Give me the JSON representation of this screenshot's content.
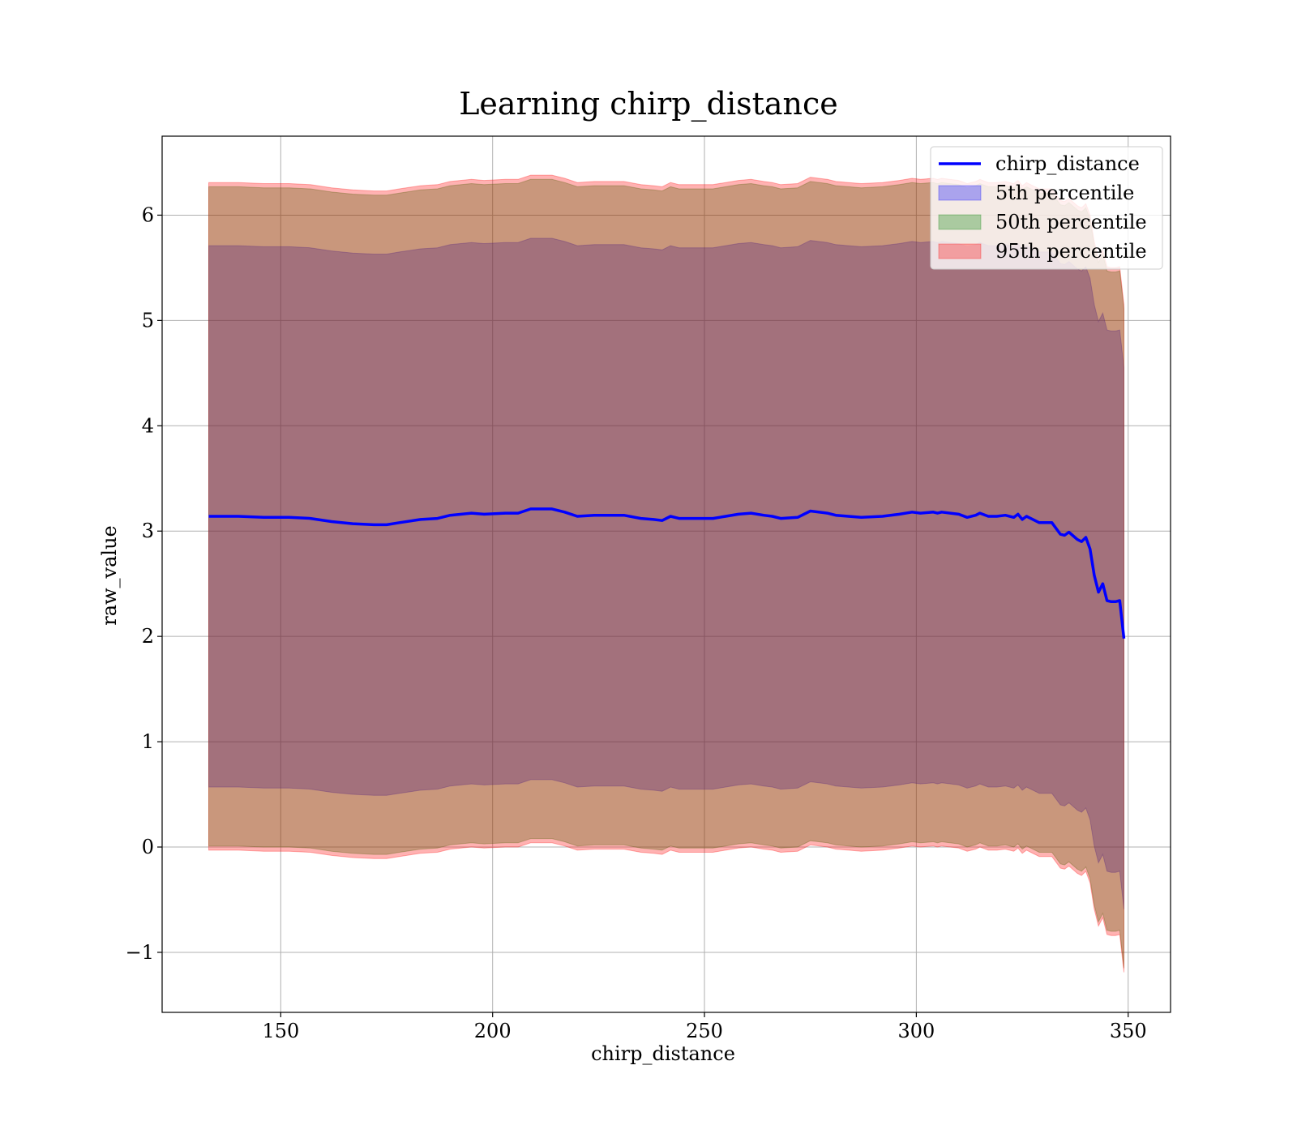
{
  "chart_data": {
    "type": "area",
    "title": "Learning chirp_distance",
    "xlabel": "chirp_distance",
    "ylabel": "raw_value",
    "xlim": [
      122,
      360
    ],
    "ylim": [
      -1.57,
      6.75
    ],
    "xticks": [
      150,
      200,
      250,
      300,
      350
    ],
    "yticks": [
      -1,
      0,
      1,
      2,
      3,
      4,
      5,
      6
    ],
    "grid": true,
    "legend_position": "top-right",
    "x": [
      133,
      140,
      146,
      152,
      157,
      162,
      167,
      172,
      175,
      178,
      183,
      187,
      190,
      195,
      198,
      203,
      206,
      209,
      214,
      217,
      220,
      224,
      231,
      235,
      238,
      240,
      242,
      244,
      247,
      250,
      252,
      255,
      258,
      261,
      264,
      266,
      268,
      272,
      275,
      279,
      281,
      284,
      287,
      292,
      296,
      299,
      301,
      304,
      305,
      306,
      310,
      312,
      314,
      315,
      317,
      319,
      321,
      323,
      324,
      325,
      326,
      327,
      329,
      330,
      332,
      334,
      335,
      336,
      338,
      339,
      340,
      341,
      342,
      343,
      344,
      345,
      346,
      347,
      348,
      349
    ],
    "series": [
      {
        "name": "chirp_distance",
        "kind": "line",
        "color": "#0000ff",
        "values": [
          3.14,
          3.14,
          3.13,
          3.13,
          3.12,
          3.09,
          3.07,
          3.06,
          3.06,
          3.08,
          3.11,
          3.12,
          3.15,
          3.17,
          3.16,
          3.17,
          3.17,
          3.21,
          3.21,
          3.18,
          3.14,
          3.15,
          3.15,
          3.12,
          3.11,
          3.1,
          3.14,
          3.12,
          3.12,
          3.12,
          3.12,
          3.14,
          3.16,
          3.17,
          3.15,
          3.14,
          3.12,
          3.13,
          3.19,
          3.17,
          3.15,
          3.14,
          3.13,
          3.14,
          3.16,
          3.18,
          3.17,
          3.18,
          3.17,
          3.18,
          3.16,
          3.13,
          3.15,
          3.17,
          3.14,
          3.14,
          3.15,
          3.13,
          3.16,
          3.11,
          3.14,
          3.12,
          3.08,
          3.08,
          3.08,
          2.97,
          2.96,
          2.99,
          2.92,
          2.9,
          2.94,
          2.83,
          2.58,
          2.42,
          2.5,
          2.34,
          2.33,
          2.33,
          2.34,
          1.98
        ]
      },
      {
        "name": "5th percentile",
        "kind": "band",
        "color": "#0000ff",
        "fill_opacity": 0.3,
        "lower": [
          0.57,
          0.57,
          0.56,
          0.56,
          0.55,
          0.52,
          0.5,
          0.49,
          0.49,
          0.51,
          0.54,
          0.55,
          0.58,
          0.6,
          0.59,
          0.6,
          0.6,
          0.64,
          0.64,
          0.61,
          0.57,
          0.58,
          0.58,
          0.55,
          0.54,
          0.53,
          0.57,
          0.55,
          0.55,
          0.55,
          0.55,
          0.57,
          0.59,
          0.6,
          0.58,
          0.57,
          0.55,
          0.56,
          0.62,
          0.6,
          0.58,
          0.57,
          0.56,
          0.57,
          0.59,
          0.61,
          0.6,
          0.61,
          0.6,
          0.61,
          0.59,
          0.56,
          0.58,
          0.6,
          0.57,
          0.57,
          0.58,
          0.56,
          0.59,
          0.54,
          0.57,
          0.55,
          0.51,
          0.51,
          0.51,
          0.4,
          0.39,
          0.42,
          0.35,
          0.33,
          0.37,
          0.26,
          0.01,
          -0.15,
          -0.07,
          -0.23,
          -0.24,
          -0.24,
          -0.23,
          -0.59
        ],
        "upper": [
          5.71,
          5.71,
          5.7,
          5.7,
          5.69,
          5.66,
          5.64,
          5.63,
          5.63,
          5.65,
          5.68,
          5.69,
          5.72,
          5.74,
          5.73,
          5.74,
          5.74,
          5.78,
          5.78,
          5.75,
          5.71,
          5.72,
          5.72,
          5.69,
          5.68,
          5.67,
          5.71,
          5.69,
          5.69,
          5.69,
          5.69,
          5.71,
          5.73,
          5.74,
          5.72,
          5.71,
          5.69,
          5.7,
          5.76,
          5.74,
          5.72,
          5.71,
          5.7,
          5.71,
          5.73,
          5.75,
          5.74,
          5.75,
          5.74,
          5.75,
          5.73,
          5.7,
          5.72,
          5.74,
          5.71,
          5.71,
          5.72,
          5.7,
          5.73,
          5.68,
          5.71,
          5.69,
          5.65,
          5.65,
          5.65,
          5.54,
          5.53,
          5.56,
          5.49,
          5.47,
          5.51,
          5.4,
          5.15,
          4.99,
          5.07,
          4.91,
          4.9,
          4.9,
          4.91,
          4.55
        ]
      },
      {
        "name": "50th percentile",
        "kind": "band",
        "color": "#008000",
        "fill_opacity": 0.3,
        "lower": [
          0.01,
          0.01,
          0.0,
          0.0,
          -0.01,
          -0.04,
          -0.06,
          -0.07,
          -0.07,
          -0.05,
          -0.02,
          -0.01,
          0.02,
          0.04,
          0.03,
          0.04,
          0.04,
          0.08,
          0.08,
          0.05,
          0.01,
          0.02,
          0.02,
          -0.01,
          -0.02,
          -0.03,
          0.01,
          -0.01,
          -0.01,
          -0.01,
          -0.01,
          0.01,
          0.03,
          0.04,
          0.02,
          0.01,
          -0.01,
          0.0,
          0.06,
          0.04,
          0.02,
          0.01,
          0.0,
          0.01,
          0.03,
          0.05,
          0.04,
          0.05,
          0.04,
          0.05,
          0.03,
          0.0,
          0.02,
          0.04,
          0.01,
          0.01,
          0.02,
          0.0,
          0.03,
          -0.02,
          0.01,
          -0.01,
          -0.05,
          -0.05,
          -0.05,
          -0.16,
          -0.17,
          -0.14,
          -0.21,
          -0.23,
          -0.19,
          -0.3,
          -0.55,
          -0.71,
          -0.63,
          -0.79,
          -0.8,
          -0.8,
          -0.79,
          -1.15
        ],
        "upper": [
          6.27,
          6.27,
          6.26,
          6.26,
          6.25,
          6.22,
          6.2,
          6.19,
          6.19,
          6.21,
          6.24,
          6.25,
          6.28,
          6.3,
          6.29,
          6.3,
          6.3,
          6.34,
          6.34,
          6.31,
          6.27,
          6.28,
          6.28,
          6.25,
          6.24,
          6.23,
          6.27,
          6.25,
          6.25,
          6.25,
          6.25,
          6.27,
          6.29,
          6.3,
          6.28,
          6.27,
          6.25,
          6.26,
          6.32,
          6.3,
          6.28,
          6.27,
          6.26,
          6.27,
          6.29,
          6.31,
          6.3,
          6.31,
          6.3,
          6.31,
          6.29,
          6.26,
          6.28,
          6.3,
          6.27,
          6.27,
          6.28,
          6.26,
          6.29,
          6.24,
          6.27,
          6.25,
          6.21,
          6.21,
          6.21,
          6.1,
          6.09,
          6.12,
          6.05,
          6.03,
          6.07,
          5.96,
          5.71,
          5.55,
          5.63,
          5.47,
          5.46,
          5.46,
          5.47,
          5.11
        ]
      },
      {
        "name": "95th percentile",
        "kind": "band",
        "color": "#ff0000",
        "fill_opacity": 0.3,
        "lower": [
          -0.03,
          -0.03,
          -0.04,
          -0.04,
          -0.05,
          -0.08,
          -0.1,
          -0.11,
          -0.11,
          -0.09,
          -0.06,
          -0.05,
          -0.02,
          0.0,
          -0.01,
          0.0,
          0.0,
          0.04,
          0.04,
          0.01,
          -0.03,
          -0.02,
          -0.02,
          -0.05,
          -0.06,
          -0.07,
          -0.03,
          -0.05,
          -0.05,
          -0.05,
          -0.05,
          -0.03,
          -0.01,
          0.0,
          -0.02,
          -0.03,
          -0.05,
          -0.04,
          0.02,
          0.0,
          -0.02,
          -0.03,
          -0.04,
          -0.03,
          -0.01,
          0.01,
          0.0,
          0.01,
          0.0,
          0.01,
          -0.01,
          -0.04,
          -0.02,
          0.0,
          -0.03,
          -0.03,
          -0.02,
          -0.04,
          -0.01,
          -0.06,
          -0.03,
          -0.05,
          -0.09,
          -0.09,
          -0.09,
          -0.2,
          -0.21,
          -0.18,
          -0.25,
          -0.27,
          -0.23,
          -0.34,
          -0.59,
          -0.75,
          -0.67,
          -0.83,
          -0.84,
          -0.84,
          -0.83,
          -1.19
        ],
        "upper": [
          6.31,
          6.31,
          6.3,
          6.3,
          6.29,
          6.26,
          6.24,
          6.23,
          6.23,
          6.25,
          6.28,
          6.29,
          6.32,
          6.34,
          6.33,
          6.34,
          6.34,
          6.38,
          6.38,
          6.35,
          6.31,
          6.32,
          6.32,
          6.29,
          6.28,
          6.27,
          6.31,
          6.29,
          6.29,
          6.29,
          6.29,
          6.31,
          6.33,
          6.34,
          6.32,
          6.31,
          6.29,
          6.3,
          6.36,
          6.34,
          6.32,
          6.31,
          6.3,
          6.31,
          6.33,
          6.35,
          6.34,
          6.35,
          6.34,
          6.35,
          6.33,
          6.3,
          6.32,
          6.34,
          6.31,
          6.31,
          6.32,
          6.3,
          6.33,
          6.28,
          6.31,
          6.29,
          6.25,
          6.25,
          6.25,
          6.14,
          6.13,
          6.16,
          6.09,
          6.07,
          6.11,
          6.0,
          5.75,
          5.59,
          5.67,
          5.51,
          5.5,
          5.5,
          5.51,
          5.15
        ]
      }
    ]
  }
}
